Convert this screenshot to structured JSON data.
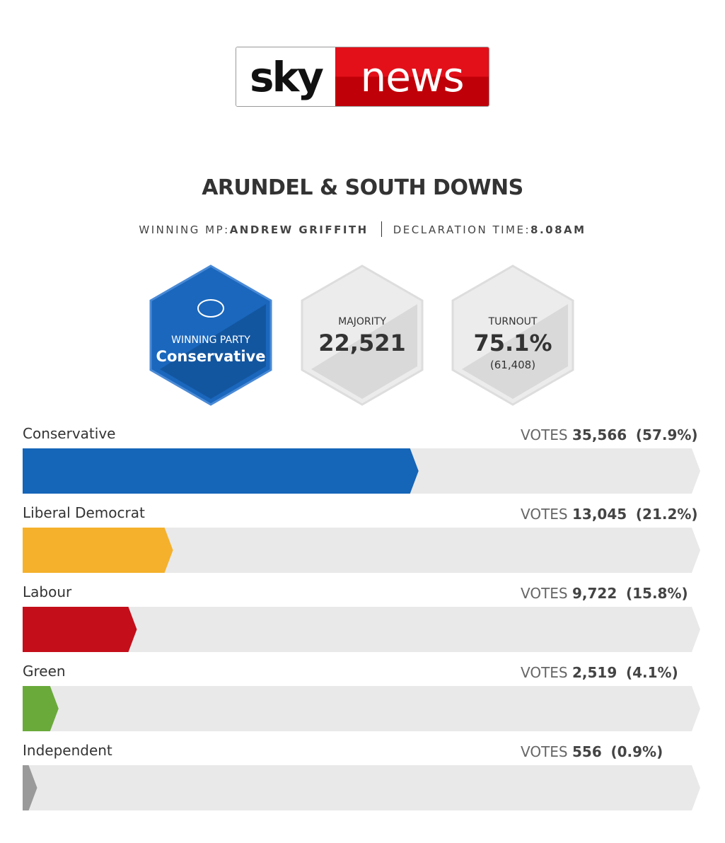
{
  "header": {
    "logo_left": "sky",
    "logo_right": "news"
  },
  "title": "ARUNDEL & SOUTH DOWNS",
  "info": {
    "mp_label": "WINNING MP:",
    "mp_name": "ANDREW GRIFFITH",
    "time_label": "DECLARATION TIME:",
    "time": "8.08AM"
  },
  "stats": {
    "party_label": "WINNING PARTY",
    "party": "Conservative",
    "majority_label": "MAJORITY",
    "majority": "22,521",
    "turnout_label": "TURNOUT",
    "turnout": "75.1%",
    "turnout_votes": "(61,408)"
  },
  "results": {
    "votes_word": "VOTES",
    "xlim": [
      0,
      100
    ],
    "rows": [
      {
        "party": "Conservative",
        "votes": "35,566",
        "percent": 57.9,
        "percent_label": "(57.9%)",
        "color": "#1565b8"
      },
      {
        "party": "Liberal Democrat",
        "votes": "13,045",
        "percent": 21.2,
        "percent_label": "(21.2%)",
        "color": "#f5b12b"
      },
      {
        "party": "Labour",
        "votes": "9,722",
        "percent": 15.8,
        "percent_label": "(15.8%)",
        "color": "#c40e1a"
      },
      {
        "party": "Green",
        "votes": "2,519",
        "percent": 4.1,
        "percent_label": "(4.1%)",
        "color": "#6aaa3a"
      },
      {
        "party": "Independent",
        "votes": "556",
        "percent": 0.9,
        "percent_label": "(0.9%)",
        "color": "#9a9a9a"
      }
    ]
  }
}
